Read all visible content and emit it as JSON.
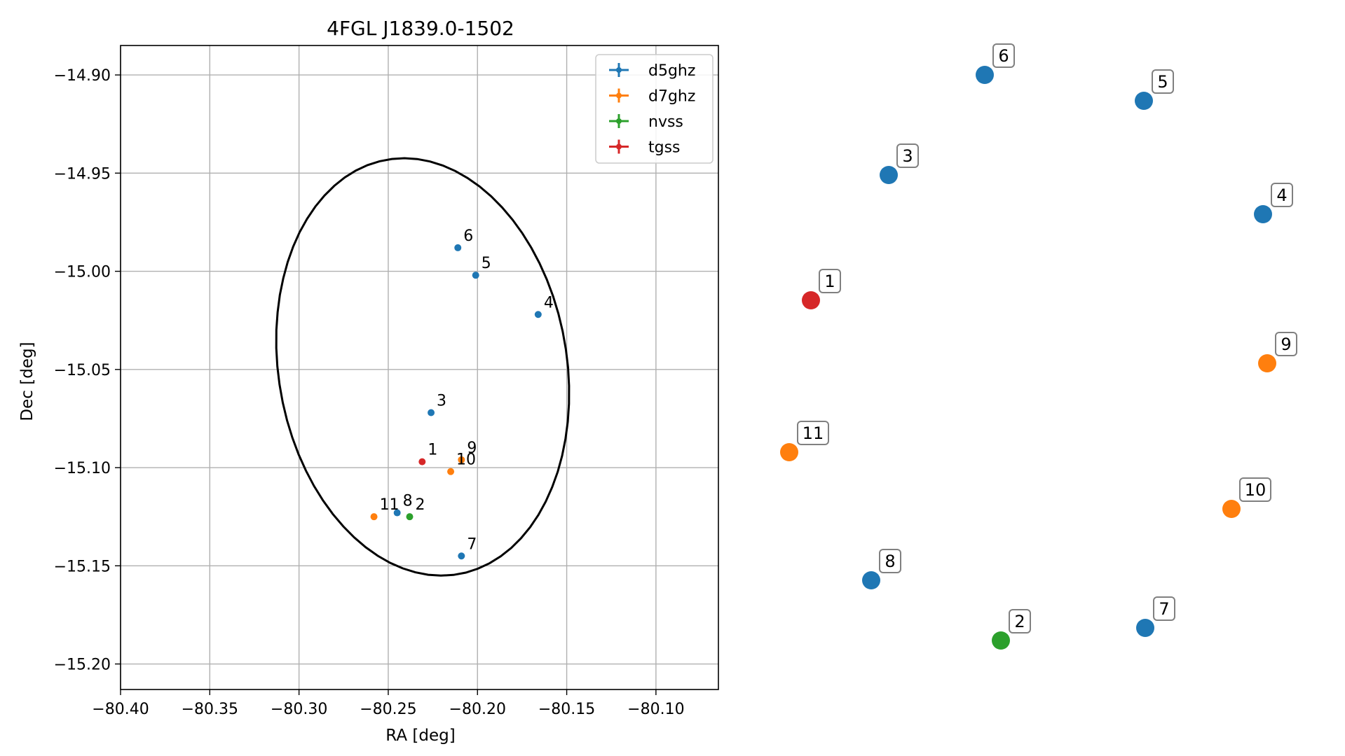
{
  "chart_data": [
    {
      "type": "scatter",
      "title": "4FGL J1839.0-1502",
      "xlabel": "RA [deg]",
      "ylabel": "Dec [deg]",
      "xlim": [
        -80.4,
        -80.065
      ],
      "ylim": [
        -15.213,
        -14.885
      ],
      "x_ticks": [
        -80.4,
        -80.35,
        -80.3,
        -80.25,
        -80.2,
        -80.15,
        -80.1
      ],
      "x_tick_labels": [
        "−80.40",
        "−80.35",
        "−80.30",
        "−80.25",
        "−80.20",
        "−80.15",
        "−80.10"
      ],
      "y_ticks": [
        -14.9,
        -14.95,
        -15.0,
        -15.05,
        -15.1,
        -15.15,
        -15.2
      ],
      "y_tick_labels": [
        "−14.90",
        "−14.95",
        "−15.00",
        "−15.05",
        "−15.10",
        "−15.15",
        "−15.20"
      ],
      "grid": true,
      "legend_position": "top-right",
      "ellipse": {
        "center_ra": -80.2307,
        "center_dec": -15.0487,
        "semi_ra": 0.0805,
        "semi_dec": 0.1075,
        "angle_deg": 13
      },
      "series": [
        {
          "name": "d5ghz",
          "color": "#1f77b4"
        },
        {
          "name": "d7ghz",
          "color": "#ff7f0e"
        },
        {
          "name": "nvss",
          "color": "#2ca02c"
        },
        {
          "name": "tgss",
          "color": "#d62728"
        }
      ],
      "points": [
        {
          "label": "1",
          "series": "tgss",
          "ra": -80.231,
          "dec": -15.097
        },
        {
          "label": "2",
          "series": "nvss",
          "ra": -80.238,
          "dec": -15.125
        },
        {
          "label": "3",
          "series": "d5ghz",
          "ra": -80.226,
          "dec": -15.072
        },
        {
          "label": "4",
          "series": "d5ghz",
          "ra": -80.166,
          "dec": -15.022
        },
        {
          "label": "5",
          "series": "d5ghz",
          "ra": -80.201,
          "dec": -15.002
        },
        {
          "label": "6",
          "series": "d5ghz",
          "ra": -80.211,
          "dec": -14.988
        },
        {
          "label": "7",
          "series": "d5ghz",
          "ra": -80.209,
          "dec": -15.145
        },
        {
          "label": "8",
          "series": "d5ghz",
          "ra": -80.245,
          "dec": -15.123
        },
        {
          "label": "9",
          "series": "d7ghz",
          "ra": -80.209,
          "dec": -15.096
        },
        {
          "label": "10",
          "series": "d7ghz",
          "ra": -80.215,
          "dec": -15.102
        },
        {
          "label": "11",
          "series": "d7ghz",
          "ra": -80.258,
          "dec": -15.125
        }
      ]
    },
    {
      "type": "scatter",
      "axes": "off",
      "points": [
        {
          "label": "1",
          "series": "tgss"
        },
        {
          "label": "2",
          "series": "nvss"
        },
        {
          "label": "3",
          "series": "d5ghz"
        },
        {
          "label": "4",
          "series": "d5ghz"
        },
        {
          "label": "5",
          "series": "d5ghz"
        },
        {
          "label": "6",
          "series": "d5ghz"
        },
        {
          "label": "7",
          "series": "d5ghz"
        },
        {
          "label": "8",
          "series": "d5ghz"
        },
        {
          "label": "9",
          "series": "d7ghz"
        },
        {
          "label": "10",
          "series": "d7ghz"
        },
        {
          "label": "11",
          "series": "d7ghz"
        }
      ]
    }
  ]
}
